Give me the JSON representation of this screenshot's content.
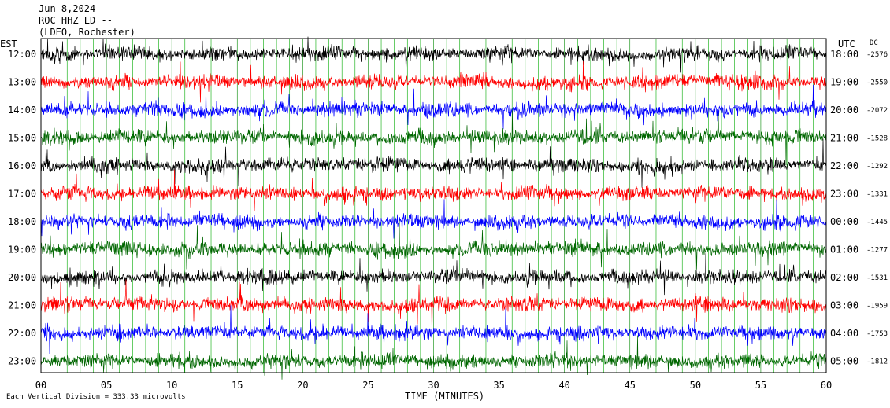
{
  "header": {
    "date": "Jun 8,2024",
    "station": "ROC HHZ LD --",
    "location": "(LDEO, Rochester)"
  },
  "left_axis_label": "EST",
  "right_axis_label": "UTC",
  "dc_label": "DC",
  "footer_note": "Each Vertical Division =  333.33 microvolts",
  "colors": {
    "black": "#000000",
    "red": "#ff0000",
    "blue": "#0000ff",
    "green": "#006600"
  },
  "chart_data": {
    "type": "line",
    "title": "",
    "xlabel": "TIME (MINUTES)",
    "ylabel": "",
    "xlim": [
      0,
      60
    ],
    "x_ticks": [
      "00",
      "05",
      "10",
      "15",
      "20",
      "25",
      "30",
      "35",
      "40",
      "45",
      "50",
      "55",
      "60"
    ],
    "color_cycle": [
      "black",
      "red",
      "blue",
      "green"
    ],
    "rows": [
      {
        "est": "12:00",
        "utc": "18:00",
        "dc": "-2576"
      },
      {
        "est": "13:00",
        "utc": "19:00",
        "dc": "-2550"
      },
      {
        "est": "14:00",
        "utc": "20:00",
        "dc": "-2072"
      },
      {
        "est": "15:00",
        "utc": "21:00",
        "dc": "-1528"
      },
      {
        "est": "16:00",
        "utc": "22:00",
        "dc": "-1292"
      },
      {
        "est": "17:00",
        "utc": "23:00",
        "dc": "-1331"
      },
      {
        "est": "18:00",
        "utc": "00:00",
        "dc": "-1445"
      },
      {
        "est": "19:00",
        "utc": "01:00",
        "dc": "-1277"
      },
      {
        "est": "20:00",
        "utc": "02:00",
        "dc": "-1531"
      },
      {
        "est": "21:00",
        "utc": "03:00",
        "dc": "-1959"
      },
      {
        "est": "22:00",
        "utc": "04:00",
        "dc": "-1753"
      },
      {
        "est": "23:00",
        "utc": "05:00",
        "dc": "-1812"
      }
    ],
    "last_trace_end_minute": 60,
    "grid": true
  }
}
